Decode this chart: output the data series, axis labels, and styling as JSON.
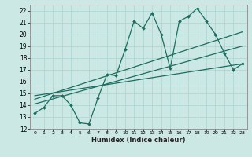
{
  "xlabel": "Humidex (Indice chaleur)",
  "bg_color": "#cce8e4",
  "grid_color": "#b0d8d4",
  "line_color": "#1a6e60",
  "xlim": [
    -0.5,
    23.5
  ],
  "ylim": [
    12,
    22.5
  ],
  "xticks": [
    0,
    1,
    2,
    3,
    4,
    5,
    6,
    7,
    8,
    9,
    10,
    11,
    12,
    13,
    14,
    15,
    16,
    17,
    18,
    19,
    20,
    21,
    22,
    23
  ],
  "yticks": [
    12,
    13,
    14,
    15,
    16,
    17,
    18,
    19,
    20,
    21,
    22
  ],
  "data_x": [
    0,
    1,
    2,
    3,
    4,
    5,
    6,
    7,
    8,
    9,
    10,
    11,
    12,
    13,
    14,
    15,
    16,
    17,
    18,
    19,
    20,
    21,
    22,
    23
  ],
  "data_y": [
    13.3,
    13.8,
    14.8,
    14.8,
    14.0,
    12.5,
    12.4,
    14.6,
    16.6,
    16.5,
    18.7,
    21.1,
    20.5,
    21.8,
    20.0,
    17.1,
    21.1,
    21.5,
    22.2,
    21.1,
    20.0,
    18.4,
    17.0,
    17.5
  ],
  "trend1_x": [
    0,
    23
  ],
  "trend1_y": [
    14.5,
    20.2
  ],
  "trend2_x": [
    0,
    23
  ],
  "trend2_y": [
    14.1,
    19.0
  ],
  "trend3_x": [
    0,
    23
  ],
  "trend3_y": [
    14.8,
    17.5
  ]
}
